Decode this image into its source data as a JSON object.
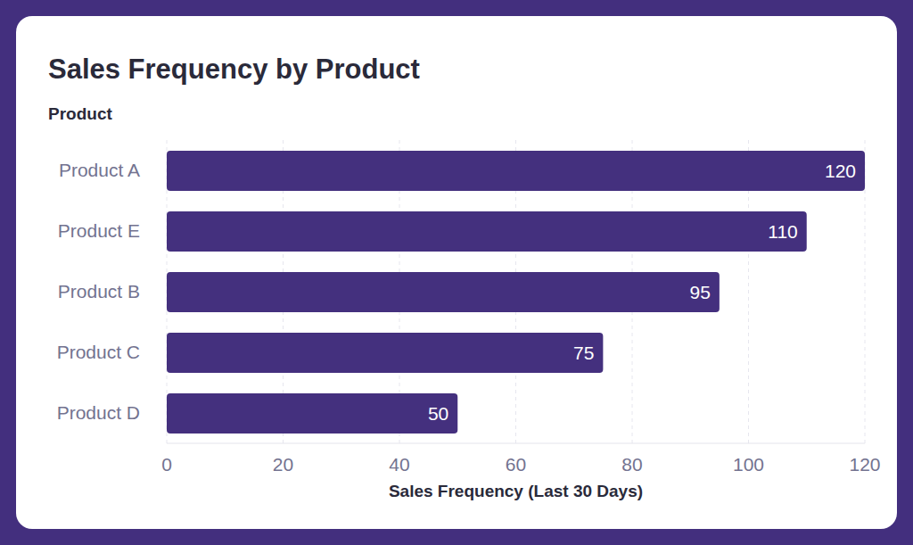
{
  "chart_data": {
    "type": "bar",
    "title": "Sales Frequency by Product",
    "x_label": "Sales Frequency (Last 30 Days)",
    "y_label": "Product",
    "categories": [
      "Product A",
      "Product E",
      "Product B",
      "Product C",
      "Product D"
    ],
    "values": [
      120,
      110,
      95,
      75,
      50
    ],
    "color": "#44307e",
    "xlim": [
      0,
      120
    ],
    "xticks": [
      0,
      20,
      40,
      60,
      80,
      100,
      120
    ],
    "orientation": "horizontal",
    "grid": true,
    "data_labels": true
  }
}
